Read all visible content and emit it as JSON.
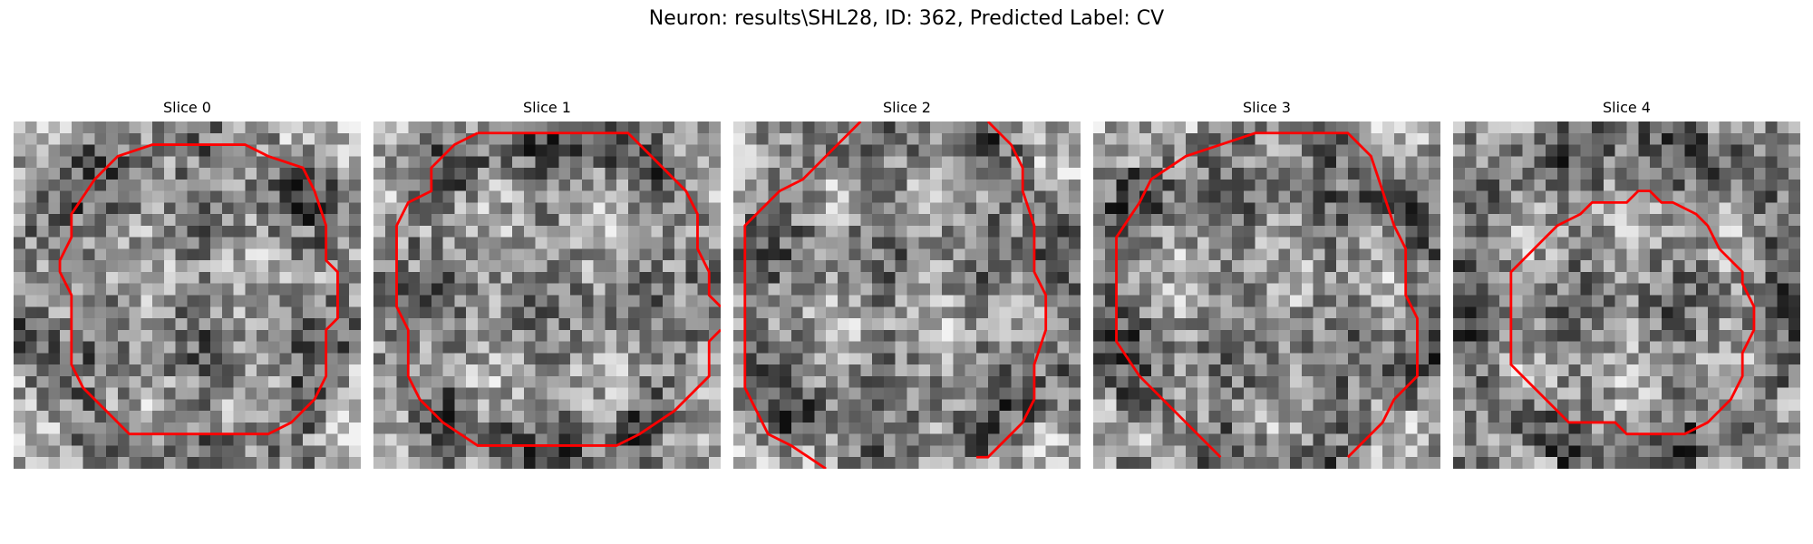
{
  "figure": {
    "title": "Neuron: results\\SHL28, ID: 362, Predicted Label: CV"
  },
  "contour_color": "#ff0000",
  "panels": [
    {
      "title": "Slice 0"
    },
    {
      "title": "Slice 1"
    },
    {
      "title": "Slice 2"
    },
    {
      "title": "Slice 3"
    },
    {
      "title": "Slice 4"
    }
  ]
}
